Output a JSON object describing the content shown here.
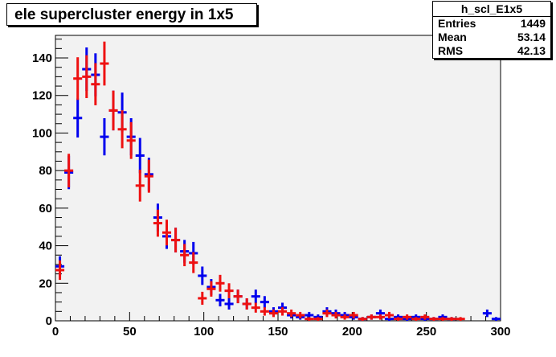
{
  "histogram": {
    "title": "ele supercluster energy in 1x5"
  },
  "stats": {
    "name": "h_scl_E1x5",
    "entries_label": "Entries",
    "entries_value": "1449",
    "mean_label": "Mean",
    "mean_value": "53.14",
    "rms_label": "RMS",
    "rms_value": "42.13"
  },
  "colors": {
    "frame_background": "#f2f2f2",
    "series_blue": "#0000ee",
    "series_red": "#ee1111"
  },
  "chart_data": {
    "type": "scatter",
    "title": "ele supercluster energy in 1x5",
    "xlabel": "",
    "ylabel": "",
    "xlim": [
      0,
      300
    ],
    "ylim": [
      0,
      152
    ],
    "x_ticks": [
      0,
      50,
      100,
      150,
      200,
      250,
      300
    ],
    "y_ticks": [
      0,
      20,
      40,
      60,
      80,
      100,
      120,
      140
    ],
    "bin_width": 6,
    "grid": false,
    "legend": "none",
    "series": [
      {
        "color": "#0000ee",
        "x": [
          3,
          9,
          15,
          21,
          27,
          33,
          39,
          45,
          51,
          57,
          63,
          69,
          75,
          81,
          87,
          93,
          99,
          105,
          111,
          117,
          123,
          129,
          135,
          141,
          147,
          153,
          159,
          165,
          171,
          177,
          183,
          189,
          195,
          201,
          207,
          213,
          219,
          225,
          231,
          237,
          243,
          249,
          255,
          261,
          267,
          273,
          279,
          285,
          291,
          297
        ],
        "values": [
          29,
          79,
          108,
          134,
          131,
          98,
          112,
          111,
          98,
          88,
          78,
          55,
          45,
          43,
          37,
          36,
          24,
          18,
          11,
          9,
          13,
          9,
          13,
          10,
          5,
          7,
          3,
          2,
          3,
          2,
          5,
          4,
          3,
          2,
          1,
          2,
          4,
          1,
          2,
          1,
          2,
          1,
          1,
          2,
          1,
          0,
          0,
          0,
          4,
          1
        ]
      },
      {
        "color": "#ee1111",
        "x": [
          3,
          9,
          15,
          21,
          27,
          33,
          39,
          45,
          51,
          57,
          63,
          69,
          75,
          81,
          87,
          93,
          99,
          105,
          111,
          117,
          123,
          129,
          135,
          141,
          147,
          153,
          159,
          165,
          171,
          177,
          183,
          189,
          195,
          201,
          207,
          213,
          219,
          225,
          231,
          237,
          243,
          249,
          255,
          261,
          267,
          273,
          279,
          285,
          291,
          297
        ],
        "values": [
          27,
          80,
          129,
          130,
          126,
          137,
          112,
          102,
          96,
          72,
          77,
          52,
          47,
          43,
          35,
          31,
          12,
          17,
          20,
          16,
          13,
          9,
          7,
          5,
          4,
          5,
          4,
          3,
          1,
          1,
          4,
          3,
          2,
          3,
          1,
          2,
          2,
          3,
          1,
          2,
          1,
          2,
          1,
          1,
          1,
          1,
          0,
          0,
          0,
          0
        ]
      }
    ]
  }
}
